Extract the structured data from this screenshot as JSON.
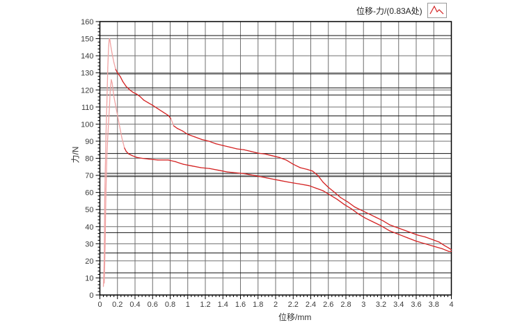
{
  "window": {
    "background": "#ffffff"
  },
  "chart_data": {
    "type": "line",
    "title": "",
    "legend_label": "位移-力/(0.83A处)",
    "legend_position": "top-right",
    "xlabel": "位移/mm",
    "ylabel": "力/N",
    "xlim": [
      0,
      4
    ],
    "ylim": [
      0,
      160
    ],
    "x_major_step": 0.2,
    "x_minor_step": 0.04,
    "y_major_step": 10,
    "y_minor_step": 2,
    "grid": true,
    "x_tick_labels": [
      "0",
      "0.2",
      "0.4",
      "0.6",
      "0.8",
      "1",
      "1.2",
      "1.4",
      "1.6",
      "1.8",
      "2",
      "2.2",
      "2.4",
      "2.6",
      "2.8",
      "3",
      "3.2",
      "3.4",
      "3.6",
      "3.8",
      "4"
    ],
    "y_tick_labels": [
      "0",
      "10",
      "20",
      "30",
      "40",
      "50",
      "60",
      "70",
      "80",
      "90",
      "100",
      "110",
      "120",
      "130",
      "140",
      "150",
      "160"
    ],
    "extra_hlines": [
      151.8,
      129.4,
      121.2,
      117.0,
      104.8,
      94.3,
      82.8,
      71.2,
      69.3,
      58.6,
      47.6,
      36.5,
      24.6,
      13.0
    ],
    "series": [
      {
        "points": [
          [
            0.04,
            5
          ],
          [
            0.045,
            12
          ],
          [
            0.05,
            22
          ],
          [
            0.053,
            40
          ],
          [
            0.055,
            55
          ],
          [
            0.06,
            70
          ],
          [
            0.065,
            82
          ],
          [
            0.07,
            95
          ],
          [
            0.075,
            104
          ],
          [
            0.08,
            113
          ],
          [
            0.085,
            123
          ],
          [
            0.09,
            133
          ],
          [
            0.095,
            140
          ],
          [
            0.1,
            146
          ],
          [
            0.105,
            149
          ],
          [
            0.11,
            150
          ],
          [
            0.115,
            149
          ],
          [
            0.12,
            147
          ],
          [
            0.13,
            144
          ],
          [
            0.14,
            141
          ],
          [
            0.16,
            136
          ],
          [
            0.18,
            132
          ],
          [
            0.2,
            130
          ],
          [
            0.23,
            128
          ],
          [
            0.26,
            125
          ],
          [
            0.3,
            122
          ],
          [
            0.34,
            120
          ],
          [
            0.38,
            118.5
          ],
          [
            0.42,
            117.5
          ],
          [
            0.46,
            116
          ],
          [
            0.5,
            114
          ],
          [
            0.55,
            112.5
          ],
          [
            0.6,
            111
          ],
          [
            0.66,
            109
          ],
          [
            0.72,
            107
          ],
          [
            0.78,
            105
          ],
          [
            0.81,
            103
          ],
          [
            0.84,
            99
          ],
          [
            0.88,
            97.5
          ],
          [
            0.94,
            96
          ],
          [
            1.0,
            94
          ],
          [
            1.08,
            92.5
          ],
          [
            1.16,
            91
          ],
          [
            1.24,
            90
          ],
          [
            1.32,
            88.5
          ],
          [
            1.4,
            87.5
          ],
          [
            1.48,
            86.5
          ],
          [
            1.56,
            85.5
          ],
          [
            1.64,
            85
          ],
          [
            1.72,
            84
          ],
          [
            1.8,
            83
          ],
          [
            1.88,
            82.5
          ],
          [
            1.96,
            81.5
          ],
          [
            2.04,
            80.5
          ],
          [
            2.12,
            79
          ],
          [
            2.2,
            76.5
          ],
          [
            2.28,
            74.5
          ],
          [
            2.36,
            73.5
          ],
          [
            2.42,
            72.5
          ],
          [
            2.48,
            70
          ],
          [
            2.54,
            66
          ],
          [
            2.6,
            63
          ],
          [
            2.66,
            60.5
          ],
          [
            2.74,
            57
          ],
          [
            2.82,
            54.5
          ],
          [
            2.9,
            51.5
          ],
          [
            2.98,
            49.5
          ],
          [
            3.06,
            47.5
          ],
          [
            3.14,
            45.5
          ],
          [
            3.22,
            43.5
          ],
          [
            3.3,
            41
          ],
          [
            3.38,
            39.5
          ],
          [
            3.46,
            38
          ],
          [
            3.54,
            36.5
          ],
          [
            3.62,
            35
          ],
          [
            3.7,
            34
          ],
          [
            3.78,
            32.5
          ],
          [
            3.86,
            31
          ],
          [
            3.92,
            29
          ],
          [
            3.97,
            27.5
          ],
          [
            4.0,
            26.5
          ]
        ]
      },
      {
        "points": [
          [
            0.05,
            7
          ],
          [
            0.055,
            18
          ],
          [
            0.06,
            30
          ],
          [
            0.065,
            48
          ],
          [
            0.07,
            62
          ],
          [
            0.075,
            72
          ],
          [
            0.08,
            82
          ],
          [
            0.09,
            93
          ],
          [
            0.1,
            102
          ],
          [
            0.11,
            111
          ],
          [
            0.115,
            117
          ],
          [
            0.12,
            121
          ],
          [
            0.13,
            126
          ],
          [
            0.14,
            124
          ],
          [
            0.15,
            120
          ],
          [
            0.16,
            116
          ],
          [
            0.175,
            112
          ],
          [
            0.19,
            108
          ],
          [
            0.205,
            104
          ],
          [
            0.22,
            100
          ],
          [
            0.235,
            96
          ],
          [
            0.25,
            92
          ],
          [
            0.265,
            89
          ],
          [
            0.28,
            86
          ],
          [
            0.3,
            84
          ],
          [
            0.33,
            82.5
          ],
          [
            0.37,
            81.5
          ],
          [
            0.42,
            80.5
          ],
          [
            0.48,
            80
          ],
          [
            0.56,
            79.5
          ],
          [
            0.66,
            79
          ],
          [
            0.78,
            79
          ],
          [
            0.86,
            78
          ],
          [
            0.95,
            76.5
          ],
          [
            1.05,
            75.5
          ],
          [
            1.15,
            74.5
          ],
          [
            1.25,
            74
          ],
          [
            1.35,
            73
          ],
          [
            1.45,
            72
          ],
          [
            1.55,
            71.5
          ],
          [
            1.65,
            71
          ],
          [
            1.75,
            70
          ],
          [
            1.85,
            69
          ],
          [
            1.95,
            68
          ],
          [
            2.05,
            67
          ],
          [
            2.15,
            66
          ],
          [
            2.27,
            65
          ],
          [
            2.38,
            64
          ],
          [
            2.46,
            62.5
          ],
          [
            2.54,
            61
          ],
          [
            2.62,
            58.5
          ],
          [
            2.7,
            56
          ],
          [
            2.78,
            53
          ],
          [
            2.86,
            50.5
          ],
          [
            2.94,
            47.5
          ],
          [
            3.02,
            45
          ],
          [
            3.1,
            43
          ],
          [
            3.2,
            40.5
          ],
          [
            3.3,
            37.5
          ],
          [
            3.4,
            35.5
          ],
          [
            3.5,
            33.5
          ],
          [
            3.6,
            31.5
          ],
          [
            3.7,
            30
          ],
          [
            3.8,
            28.5
          ],
          [
            3.9,
            27
          ],
          [
            3.97,
            25.5
          ],
          [
            4.0,
            25.5
          ]
        ]
      }
    ]
  },
  "colors": {
    "curve": "#d42222",
    "curve_light": "#f0a3a3",
    "grid_major": "#6f6f6f",
    "grid_extra": "#111111",
    "axis": "#000000",
    "tick_label": "#3b3b3b",
    "legend_border": "#9a9a9a"
  },
  "legend_icon": {
    "name": "peak-line-icon",
    "points": [
      [
        3,
        15
      ],
      [
        9,
        4
      ],
      [
        13,
        12
      ],
      [
        16,
        9
      ],
      [
        22,
        15
      ]
    ]
  }
}
